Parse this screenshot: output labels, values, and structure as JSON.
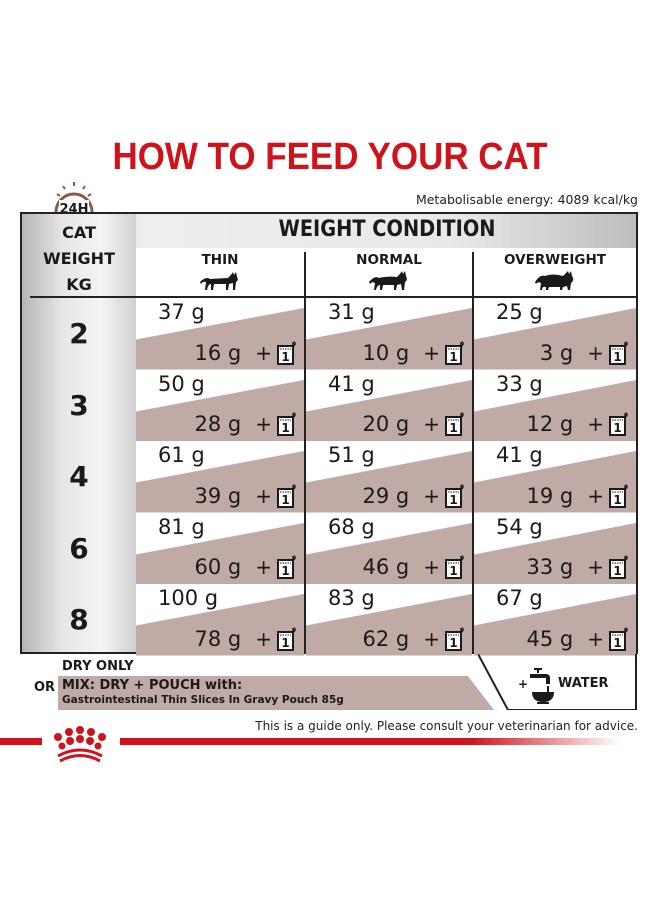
{
  "title": "HOW TO FEED YOUR CAT",
  "clock_badge": "24H",
  "energy": "Metabolisable energy: 4089 kcal/kg",
  "table": {
    "weight_header": [
      "CAT",
      "WEIGHT",
      "KG"
    ],
    "condition_header": "WEIGHT CONDITION",
    "conditions": [
      {
        "label": "THIN",
        "icon": "thin-cat-icon"
      },
      {
        "label": "NORMAL",
        "icon": "normal-cat-icon"
      },
      {
        "label": "OVERWEIGHT",
        "icon": "overweight-cat-icon"
      }
    ],
    "rows": [
      {
        "kg": "2",
        "cells": [
          {
            "dry": "37 g",
            "mix": "16 g",
            "pouch": "1"
          },
          {
            "dry": "31 g",
            "mix": "10 g",
            "pouch": "1"
          },
          {
            "dry": "25 g",
            "mix": "3 g",
            "pouch": "1"
          }
        ]
      },
      {
        "kg": "3",
        "cells": [
          {
            "dry": "50 g",
            "mix": "28 g",
            "pouch": "1"
          },
          {
            "dry": "41 g",
            "mix": "20 g",
            "pouch": "1"
          },
          {
            "dry": "33 g",
            "mix": "12 g",
            "pouch": "1"
          }
        ]
      },
      {
        "kg": "4",
        "cells": [
          {
            "dry": "61 g",
            "mix": "39 g",
            "pouch": "1"
          },
          {
            "dry": "51 g",
            "mix": "29 g",
            "pouch": "1"
          },
          {
            "dry": "41 g",
            "mix": "19 g",
            "pouch": "1"
          }
        ]
      },
      {
        "kg": "6",
        "cells": [
          {
            "dry": "81 g",
            "mix": "60 g",
            "pouch": "1"
          },
          {
            "dry": "68 g",
            "mix": "46 g",
            "pouch": "1"
          },
          {
            "dry": "54 g",
            "mix": "33 g",
            "pouch": "1"
          }
        ]
      },
      {
        "kg": "8",
        "cells": [
          {
            "dry": "100 g",
            "mix": "78 g",
            "pouch": "1"
          },
          {
            "dry": "83 g",
            "mix": "62 g",
            "pouch": "1"
          },
          {
            "dry": "67 g",
            "mix": "45 g",
            "pouch": "1"
          }
        ]
      }
    ],
    "plus": "+"
  },
  "legend": {
    "dry_only": "DRY ONLY",
    "or": "OR",
    "mix_title": "MIX: DRY + POUCH with:",
    "mix_product": "Gastrointestinal Thin Slices In Gravy Pouch 85g",
    "water_plus": "+",
    "water": "WATER"
  },
  "disclaimer": "This is a guide only. Please consult your veterinarian for advice.",
  "colors": {
    "brand_red": "#d0121b",
    "mix_band": "#bfaaa5",
    "clock_brown": "#8a5a44"
  }
}
